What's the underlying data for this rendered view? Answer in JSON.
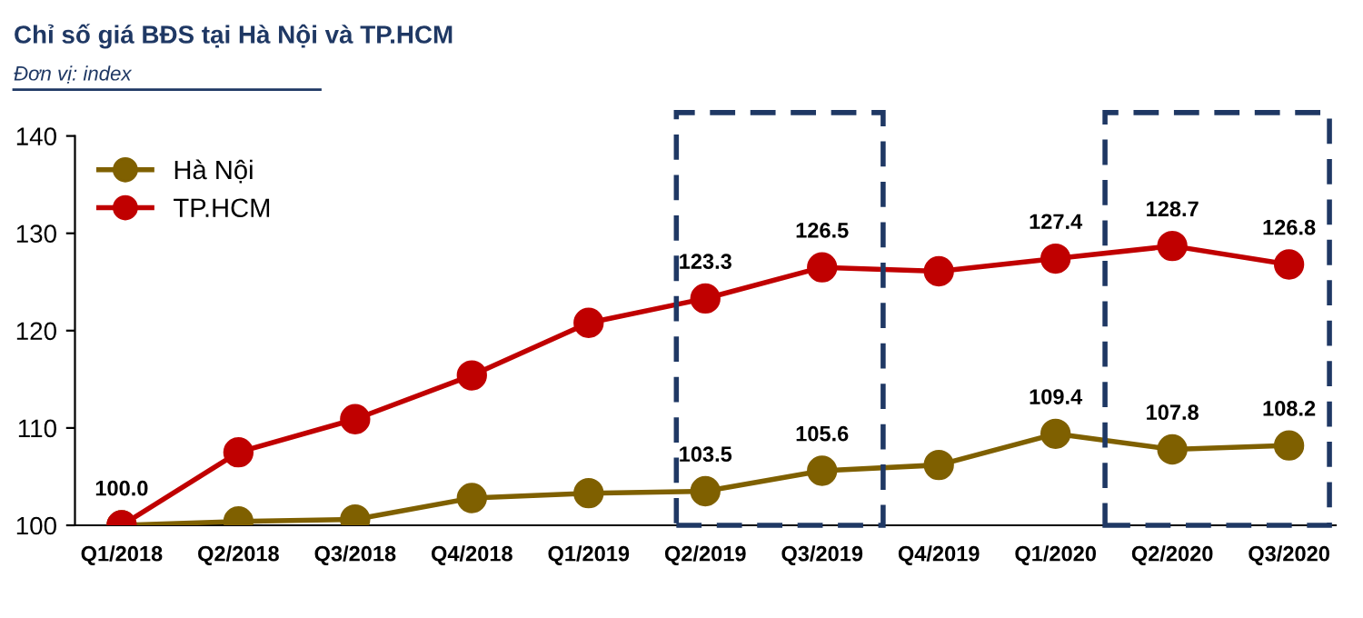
{
  "chart_data": {
    "type": "line",
    "title": "Chỉ số giá BĐS tại Hà Nội và TP.HCM",
    "subtitle": "Đơn vị: index",
    "categories": [
      "Q1/2018",
      "Q2/2018",
      "Q3/2018",
      "Q4/2018",
      "Q1/2019",
      "Q2/2019",
      "Q3/2019",
      "Q4/2019",
      "Q1/2020",
      "Q2/2020",
      "Q3/2020"
    ],
    "series": [
      {
        "name": "Hà Nội",
        "color": "#7f6000",
        "values": [
          100.0,
          100.4,
          100.6,
          102.8,
          103.3,
          103.5,
          105.6,
          106.2,
          109.4,
          107.8,
          108.2
        ],
        "value_labels": [
          "100.0",
          null,
          null,
          null,
          null,
          "103.5",
          "105.6",
          null,
          "109.4",
          "107.8",
          "108.2"
        ]
      },
      {
        "name": "TP.HCM",
        "color": "#c00000",
        "values": [
          100.0,
          107.5,
          110.9,
          115.4,
          120.8,
          123.3,
          126.5,
          126.1,
          127.4,
          128.7,
          126.8
        ],
        "value_labels": [
          null,
          null,
          null,
          null,
          null,
          "123.3",
          "126.5",
          null,
          "127.4",
          "128.7",
          "126.8"
        ]
      }
    ],
    "ylim": [
      100,
      140
    ],
    "yticks": [
      100,
      110,
      120,
      130,
      140
    ],
    "grid": false,
    "legend": "top left",
    "marker": "circle",
    "line_style": "solid"
  }
}
